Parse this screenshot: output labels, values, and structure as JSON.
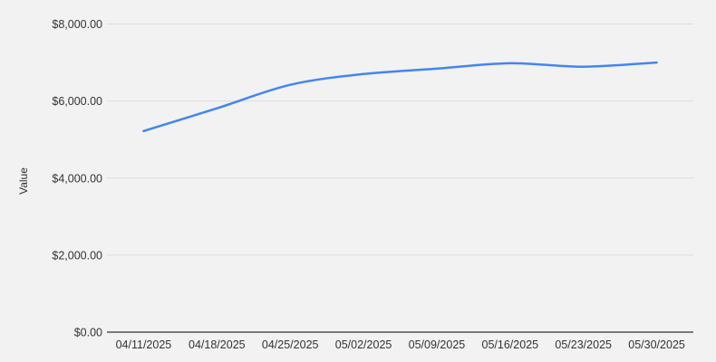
{
  "colors": {
    "background": "#f2f2f2",
    "series_line": "#4285f4",
    "gridline": "#dddddd",
    "axis_baseline": "#7a7a7a",
    "tick_text": "#333333"
  },
  "chart_data": {
    "type": "line",
    "title": "",
    "xlabel": "",
    "ylabel": "Value",
    "legend": "none",
    "grid": true,
    "smooth": true,
    "categories": [
      "04/11/2025",
      "04/18/2025",
      "04/25/2025",
      "05/02/2025",
      "05/09/2025",
      "05/16/2025",
      "05/23/2025",
      "05/30/2025"
    ],
    "series": [
      {
        "name": "Value",
        "values": [
          5220,
          5810,
          6420,
          6700,
          6840,
          6980,
          6890,
          7000
        ]
      }
    ],
    "ylim": [
      0,
      8000
    ],
    "y_ticks": [
      0,
      2000,
      4000,
      6000,
      8000
    ],
    "y_tick_labels": [
      "$0.00",
      "$2,000.00",
      "$4,000.00",
      "$6,000.00",
      "$8,000.00"
    ]
  }
}
